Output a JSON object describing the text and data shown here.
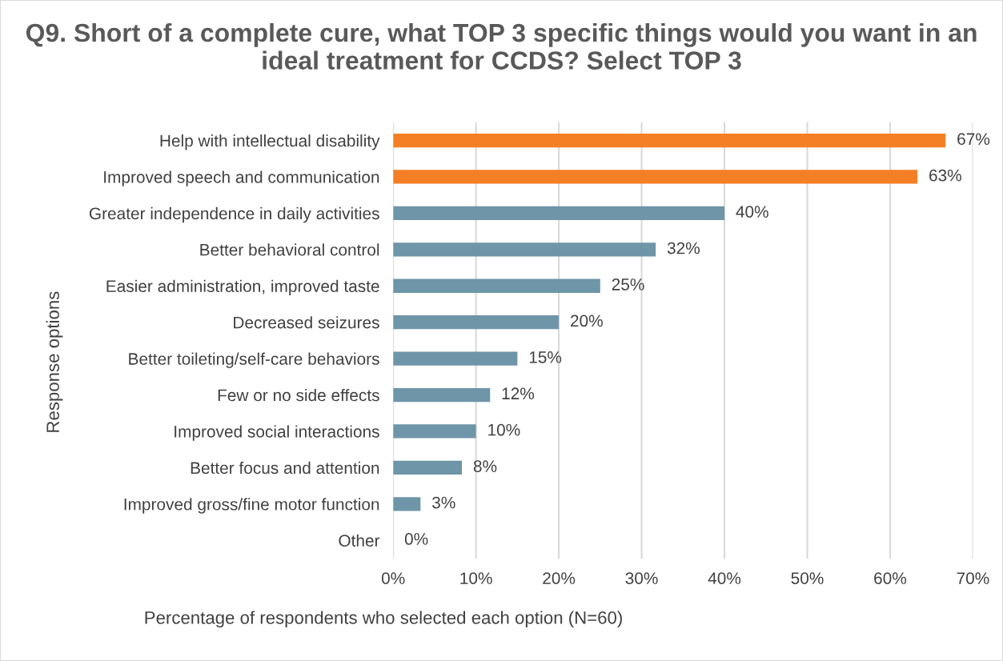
{
  "chart_data": {
    "type": "bar",
    "orientation": "horizontal",
    "title": "Q9. Short of a complete cure, what TOP 3 specific things would you want in an ideal treatment for CCDS? Select TOP 3",
    "xlabel": "Percentage of respondents who selected each option (N=60)",
    "ylabel": "Response options",
    "categories": [
      "Help with intellectual disability",
      "Improved speech and communication",
      "Greater independence in daily activities",
      "Better behavioral control",
      "Easier administration, improved taste",
      "Decreased seizures",
      "Better toileting/self-care behaviors",
      "Few or no side effects",
      "Improved social interactions",
      "Better focus and attention",
      "Improved gross/fine motor function",
      "Other"
    ],
    "values": [
      66.7,
      63.3,
      40,
      31.7,
      25,
      20,
      15,
      11.7,
      10,
      8.3,
      3.3,
      0
    ],
    "value_labels": [
      "67%",
      "63%",
      "40%",
      "32%",
      "25%",
      "20%",
      "15%",
      "12%",
      "10%",
      "8%",
      "3%",
      "0%"
    ],
    "colors": [
      "#f47f24",
      "#f47f24",
      "#6e95a8",
      "#6e95a8",
      "#6e95a8",
      "#6e95a8",
      "#6e95a8",
      "#6e95a8",
      "#6e95a8",
      "#6e95a8",
      "#6e95a8",
      "#6e95a8"
    ],
    "xlim": [
      0,
      70
    ],
    "xticks": [
      {
        "value": 0,
        "label": "0%"
      },
      {
        "value": 10,
        "label": "10%"
      },
      {
        "value": 20,
        "label": "20%"
      },
      {
        "value": 30,
        "label": "30%"
      },
      {
        "value": 40,
        "label": "40%"
      },
      {
        "value": 50,
        "label": "50%"
      },
      {
        "value": 60,
        "label": "60%"
      },
      {
        "value": 70,
        "label": "70%"
      }
    ],
    "grid": "x",
    "legend": false
  }
}
